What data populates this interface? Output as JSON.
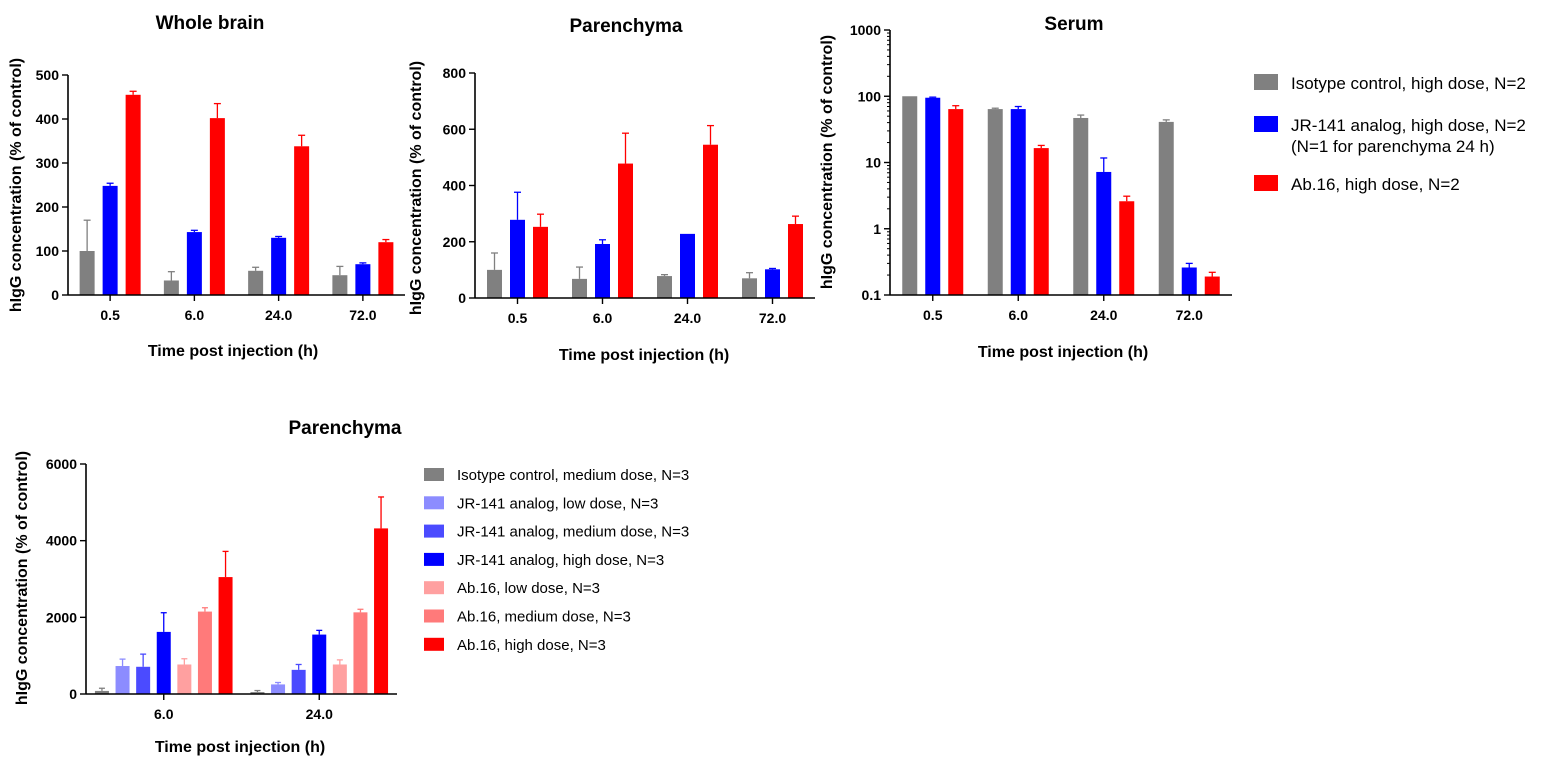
{
  "chart_data": [
    {
      "type": "bar",
      "title": "Whole brain",
      "xlabel": "Time post injection (h)",
      "ylabel": "hIgG concentration (% of control)",
      "yscale": "linear",
      "ylim": [
        0,
        500
      ],
      "yticks": [
        "0",
        "100",
        "200",
        "300",
        "400",
        "500"
      ],
      "categories": [
        "0.5",
        "6.0",
        "24.0",
        "72.0"
      ],
      "series": [
        {
          "name": "Isotype control, high dose, N=2",
          "color": "#808080",
          "values": [
            100,
            33,
            55,
            45
          ],
          "errors": [
            70,
            20,
            8,
            20
          ]
        },
        {
          "name": "JR-141 analog, high dose, N=2",
          "color": "#0000ff",
          "values": [
            248,
            143,
            130,
            70
          ],
          "errors": [
            6,
            4,
            3,
            3
          ]
        },
        {
          "name": "Ab.16, high dose, N=2",
          "color": "#ff0000",
          "values": [
            455,
            402,
            338,
            120
          ],
          "errors": [
            8,
            33,
            25,
            6
          ]
        }
      ]
    },
    {
      "type": "bar",
      "title": "Parenchyma",
      "xlabel": "Time post injection (h)",
      "ylabel": "hIgG concentration (% of control)",
      "yscale": "linear",
      "ylim": [
        0,
        800
      ],
      "yticks": [
        "0",
        "200",
        "400",
        "600",
        "800"
      ],
      "categories": [
        "0.5",
        "6.0",
        "24.0",
        "72.0"
      ],
      "series": [
        {
          "name": "Isotype control, high dose, N=2",
          "color": "#808080",
          "values": [
            100,
            68,
            78,
            70
          ],
          "errors": [
            60,
            42,
            5,
            20
          ]
        },
        {
          "name": "JR-141 analog, high dose, N=2",
          "color": "#0000ff",
          "values": [
            278,
            192,
            228,
            102
          ],
          "errors": [
            98,
            15,
            0,
            3
          ]
        },
        {
          "name": "Ab.16, high dose, N=2",
          "color": "#ff0000",
          "values": [
            253,
            478,
            545,
            263
          ],
          "errors": [
            45,
            108,
            68,
            28
          ]
        }
      ]
    },
    {
      "type": "bar",
      "title": "Serum",
      "xlabel": "Time post injection (h)",
      "ylabel": "hIgG concentration (% of control)",
      "yscale": "log",
      "ylim": [
        0.1,
        1000
      ],
      "yticks": [
        "0.1",
        "1",
        "10",
        "100",
        "1000"
      ],
      "categories": [
        "0.5",
        "6.0",
        "24.0",
        "72.0"
      ],
      "series": [
        {
          "name": "Isotype control, high dose, N=2",
          "color": "#808080",
          "values": [
            100,
            64,
            47,
            41
          ],
          "errors": [
            0,
            2,
            5,
            3
          ]
        },
        {
          "name": "JR-141 analog, high dose, N=2",
          "color": "#0000ff",
          "values": [
            95,
            64,
            7.2,
            0.26
          ],
          "errors": [
            2,
            6,
            4.5,
            0.04
          ]
        },
        {
          "name": "Ab.16, high dose, N=2",
          "color": "#ff0000",
          "values": [
            64,
            16.5,
            2.6,
            0.19
          ],
          "errors": [
            8,
            1.6,
            0.5,
            0.03
          ]
        }
      ]
    },
    {
      "type": "bar",
      "title": "Parenchyma",
      "xlabel": "Time post injection (h)",
      "ylabel": "hIgG concentration (% of control)",
      "yscale": "linear",
      "ylim": [
        0,
        6000
      ],
      "yticks": [
        "0",
        "2000",
        "4000",
        "6000"
      ],
      "categories": [
        "6.0",
        "24.0"
      ],
      "series": [
        {
          "name": "Isotype control, medium dose, N=3",
          "color": "#808080",
          "values": [
            80,
            50
          ],
          "errors": [
            70,
            40
          ]
        },
        {
          "name": "JR-141 analog, low dose, N=3",
          "color": "#8c8cff",
          "values": [
            730,
            250
          ],
          "errors": [
            180,
            50
          ]
        },
        {
          "name": "JR-141 analog, medium dose, N=3",
          "color": "#4b4bff",
          "values": [
            710,
            630
          ],
          "errors": [
            330,
            140
          ]
        },
        {
          "name": "JR-141 analog, high dose, N=3",
          "color": "#0000ff",
          "values": [
            1620,
            1550
          ],
          "errors": [
            500,
            110
          ]
        },
        {
          "name": "Ab.16, low dose, N=3",
          "color": "#ffa0a0",
          "values": [
            770,
            770
          ],
          "errors": [
            150,
            120
          ]
        },
        {
          "name": "Ab.16, medium dose, N=3",
          "color": "#ff7a7a",
          "values": [
            2150,
            2130
          ],
          "errors": [
            100,
            80
          ]
        },
        {
          "name": "Ab.16, high dose, N=3",
          "color": "#ff0000",
          "values": [
            3050,
            4320
          ],
          "errors": [
            670,
            820
          ]
        }
      ]
    }
  ],
  "legend_top": [
    {
      "label": "Isotype control, high dose, N=2",
      "color": "#808080"
    },
    {
      "label": "JR-141 analog, high dose, N=2",
      "label2": "(N=1 for parenchyma 24 h)",
      "color": "#0000ff"
    },
    {
      "label": "Ab.16, high dose, N=2",
      "color": "#ff0000"
    }
  ],
  "legend_bottom": [
    {
      "label": "Isotype control, medium dose, N=3",
      "color": "#808080"
    },
    {
      "label": "JR-141 analog, low dose, N=3",
      "color": "#8c8cff"
    },
    {
      "label": "JR-141 analog, medium dose, N=3",
      "color": "#4b4bff"
    },
    {
      "label": "JR-141 analog, high dose, N=3",
      "color": "#0000ff"
    },
    {
      "label": "Ab.16, low dose, N=3",
      "color": "#ffa0a0"
    },
    {
      "label": "Ab.16, medium dose, N=3",
      "color": "#ff7a7a"
    },
    {
      "label": "Ab.16, high dose, N=3",
      "color": "#ff0000"
    }
  ]
}
